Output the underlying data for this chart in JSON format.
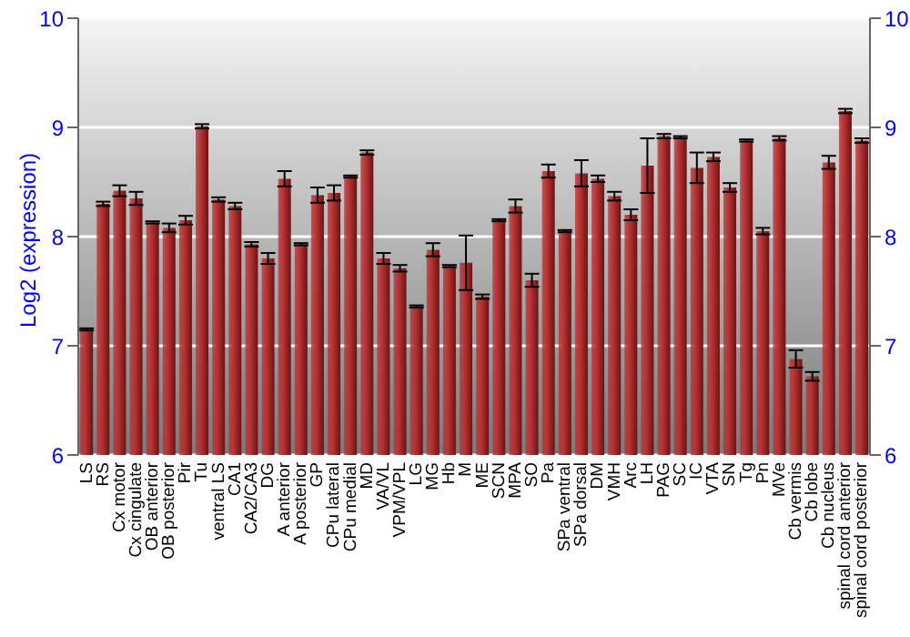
{
  "chart_data": {
    "type": "bar",
    "ylabel": "Log2 (expression)",
    "categories": [
      "LS",
      "RS",
      "Cx motor",
      "Cx cingulate",
      "OB anterior",
      "OB posterior",
      "Pir",
      "Tu",
      "ventral LS",
      "CA1",
      "CA2/CA3",
      "DG",
      "A anterior",
      "A posterior",
      "GP",
      "CPu lateral",
      "CPu medial",
      "MD",
      "VA/VL",
      "VPM/VPL",
      "LG",
      "MG",
      "Hb",
      "M",
      "ME",
      "SCN",
      "MPA",
      "SO",
      "Pa",
      "SPa ventral",
      "SPa dorsal",
      "DM",
      "VMH",
      "Arc",
      "LH",
      "PAG",
      "SC",
      "IC",
      "VTA",
      "SN",
      "Tg",
      "Pn",
      "MVe",
      "Cb vermis",
      "Cb lobe",
      "Cb nucleus",
      "spinal cord anterior",
      "spinal cord posterior"
    ],
    "values": [
      7.15,
      8.3,
      8.42,
      8.35,
      8.13,
      8.08,
      8.15,
      9.01,
      8.34,
      8.28,
      7.93,
      7.8,
      8.53,
      7.93,
      8.38,
      8.4,
      8.55,
      8.77,
      7.8,
      7.71,
      7.36,
      7.88,
      7.73,
      7.76,
      7.45,
      8.15,
      8.28,
      7.6,
      8.6,
      8.05,
      8.58,
      8.53,
      8.37,
      8.2,
      8.65,
      8.92,
      8.91,
      8.63,
      8.73,
      8.45,
      8.88,
      8.05,
      8.9,
      6.88,
      6.72,
      8.68,
      9.15,
      8.88
    ],
    "errors": [
      0.01,
      0.02,
      0.05,
      0.06,
      0.01,
      0.04,
      0.04,
      0.02,
      0.02,
      0.03,
      0.02,
      0.05,
      0.07,
      0.01,
      0.07,
      0.07,
      0.01,
      0.02,
      0.05,
      0.03,
      0.01,
      0.06,
      0.01,
      0.25,
      0.02,
      0.01,
      0.06,
      0.06,
      0.06,
      0.01,
      0.12,
      0.03,
      0.04,
      0.05,
      0.25,
      0.02,
      0.01,
      0.14,
      0.04,
      0.04,
      0.01,
      0.03,
      0.02,
      0.08,
      0.04,
      0.06,
      0.02,
      0.02
    ],
    "color": "#b83232",
    "ylim": [
      6,
      10
    ],
    "yticks": [
      6,
      7,
      8,
      9,
      10
    ],
    "y2lim": [
      6,
      10
    ],
    "y2ticks": [
      6,
      7,
      8,
      9,
      10
    ],
    "grid": "y"
  }
}
